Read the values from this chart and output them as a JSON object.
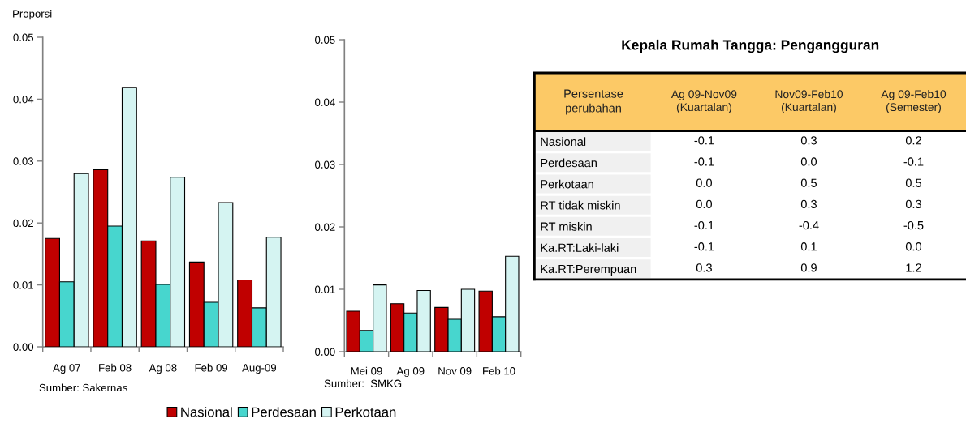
{
  "chart_data": [
    {
      "type": "bar",
      "ylabel": "Proporsi",
      "categories": [
        "Ag 07",
        "Feb 08",
        "Ag 08",
        "Feb 09",
        "Aug-09"
      ],
      "series": [
        {
          "name": "Nasional",
          "color": "#c00000",
          "values": [
            0.0175,
            0.0286,
            0.0171,
            0.0137,
            0.0108
          ]
        },
        {
          "name": "Perdesaan",
          "color": "#47d6ce",
          "values": [
            0.0105,
            0.0195,
            0.0101,
            0.0072,
            0.0063
          ]
        },
        {
          "name": "Perkotaan",
          "color": "#d5f4f2",
          "values": [
            0.028,
            0.0419,
            0.0274,
            0.0233,
            0.0177
          ]
        }
      ],
      "ylim": [
        0,
        0.05
      ],
      "yticks": [
        {
          "value": 0,
          "label": "0.00"
        },
        0.01,
        0.02,
        0.03,
        0.04,
        0.05
      ],
      "annotations": [
        "Sumber: Sakernas"
      ],
      "legend": "bottom"
    },
    {
      "type": "bar",
      "categories": [
        "Mei 09",
        "Ag 09",
        "Nov 09",
        "Feb 10"
      ],
      "series": [
        {
          "color": "#c00000",
          "values": [
            0.0065,
            0.0077,
            0.0071,
            0.0097
          ]
        },
        {
          "color": "#47d6ce",
          "values": [
            0.0034,
            0.0062,
            0.0052,
            0.0056
          ]
        },
        {
          "color": "#d5f4f2",
          "values": [
            0.0107,
            0.0098,
            0.01,
            0.0153
          ]
        }
      ],
      "ylim": [
        0,
        0.05
      ],
      "yticks": [
        {
          "value": 0,
          "label": "0.00"
        },
        0.01,
        0.02,
        0.03,
        0.04,
        0.05
      ],
      "annotations": [
        "Sumber:  SMKG"
      ]
    },
    {
      "type": "heatmap",
      "title": "Kepala Rumah Tangga: Pengangguran",
      "ylabel": "Persentase\nperubahan",
      "categories": [
        "Ag 09-Nov09\n(Kuartalan)",
        "Nov09-Feb10\n(Kuartalan)",
        "Ag 09-Feb10\n(Semester)"
      ],
      "y_categories": [
        "Nasional",
        "Perdesaan",
        "Perkotaan",
        "RT tidak miskin",
        "RT miskin",
        "Ka.RT:Laki-laki",
        "Ka.RT:Perempuan"
      ],
      "cells": [
        [
          -0.1,
          0.3,
          0.2
        ],
        [
          -0.1,
          0.0,
          -0.1
        ],
        [
          0.0,
          0.5,
          0.5
        ],
        [
          0.0,
          0.3,
          0.3
        ],
        [
          -0.1,
          -0.4,
          -0.5
        ],
        [
          -0.1,
          0.1,
          0.0
        ],
        [
          0.3,
          0.9,
          1.2
        ]
      ],
      "cell_labels": [
        [
          "-0.1",
          "0.3",
          "0.2"
        ],
        [
          "-0.1",
          "0.0",
          "-0.1"
        ],
        [
          "0.0",
          "0.5",
          "0.5"
        ],
        [
          "0.0",
          "0.3",
          "0.3"
        ],
        [
          "-0.1",
          "-0.4",
          "-0.5"
        ],
        [
          "-0.1",
          "0.1",
          "0.0"
        ],
        [
          "0.3",
          "0.9",
          "1.2"
        ]
      ],
      "data_labels": true
    }
  ]
}
